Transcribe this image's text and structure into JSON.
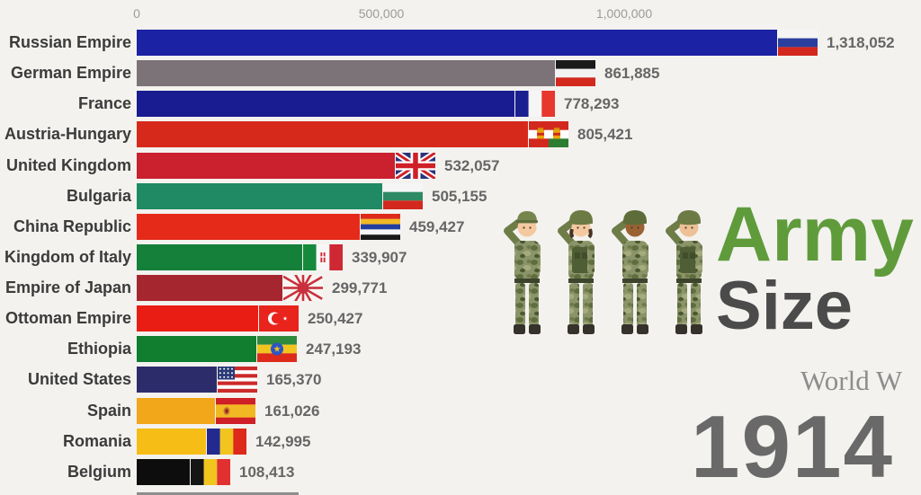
{
  "title": {
    "word1": "Army",
    "word2": "Size",
    "subtitle_visible": "World W",
    "year": "1914"
  },
  "colors": {
    "background": "#f3f2ef",
    "army_green": "#5f9b3b",
    "size_gray": "#4b4b4b",
    "subtitle_gray": "#8d8d8d",
    "year_gray": "#696969",
    "axis_tick_gray": "#9b9b9b",
    "country_label": "#3b3b3b",
    "value_label": "#666666"
  },
  "axis": {
    "tick_labels": [
      "0",
      "500,000",
      "1,000,000"
    ]
  },
  "illustration": {
    "name": "soldiers-saluting",
    "count": 4
  },
  "chart_data": {
    "type": "bar",
    "orientation": "horizontal",
    "title": "Army Size",
    "subtitle": "World W",
    "year_label": "1914",
    "x_axis": {
      "ticks": [
        0,
        500000,
        1000000
      ],
      "tick_labels": [
        "0",
        "500,000",
        "1,000,000"
      ],
      "range": [
        0,
        1500000
      ]
    },
    "legend": "none",
    "grid": "off",
    "rows": [
      {
        "country": "Russian Empire",
        "value": 1318052,
        "value_label": "1,318,052",
        "bar_color": "#1b22a4",
        "flag": "russian-empire"
      },
      {
        "country": "German Empire",
        "value": 861885,
        "value_label": "861,885",
        "bar_color": "#7b7377",
        "flag": "german-empire"
      },
      {
        "country": "France",
        "value": 778293,
        "value_label": "778,293",
        "bar_color": "#191b90",
        "flag": "france"
      },
      {
        "country": "Austria-Hungary",
        "value": 805421,
        "value_label": "805,421",
        "bar_color": "#d7291b",
        "flag": "austria-hungary"
      },
      {
        "country": "United Kingdom",
        "value": 532057,
        "value_label": "532,057",
        "bar_color": "#cb202d",
        "flag": "united-kingdom"
      },
      {
        "country": "Bulgaria",
        "value": 505155,
        "value_label": "505,155",
        "bar_color": "#1f8a64",
        "flag": "bulgaria"
      },
      {
        "country": "China Republic",
        "value": 459427,
        "value_label": "459,427",
        "bar_color": "#e62a1a",
        "flag": "china-republic"
      },
      {
        "country": "Kingdom of Italy",
        "value": 339907,
        "value_label": "339,907",
        "bar_color": "#15803a",
        "flag": "kingdom-of-italy"
      },
      {
        "country": "Empire of Japan",
        "value": 299771,
        "value_label": "299,771",
        "bar_color": "#a62630",
        "flag": "empire-of-japan"
      },
      {
        "country": "Ottoman Empire",
        "value": 250427,
        "value_label": "250,427",
        "bar_color": "#ea1d15",
        "flag": "ottoman-empire"
      },
      {
        "country": "Ethiopia",
        "value": 247193,
        "value_label": "247,193",
        "bar_color": "#107d2f",
        "flag": "ethiopia"
      },
      {
        "country": "United States",
        "value": 165370,
        "value_label": "165,370",
        "bar_color": "#2d2c6b",
        "flag": "united-states"
      },
      {
        "country": "Spain",
        "value": 161026,
        "value_label": "161,026",
        "bar_color": "#f2a619",
        "flag": "spain"
      },
      {
        "country": "Romania",
        "value": 142995,
        "value_label": "142,995",
        "bar_color": "#f5bd16",
        "flag": "romania"
      },
      {
        "country": "Belgium",
        "value": 108413,
        "value_label": "108,413",
        "bar_color": "#0d0d0d",
        "flag": "belgium"
      }
    ],
    "partial_next_row": {
      "visible": true,
      "bar_color": "#8e8e8e"
    }
  }
}
